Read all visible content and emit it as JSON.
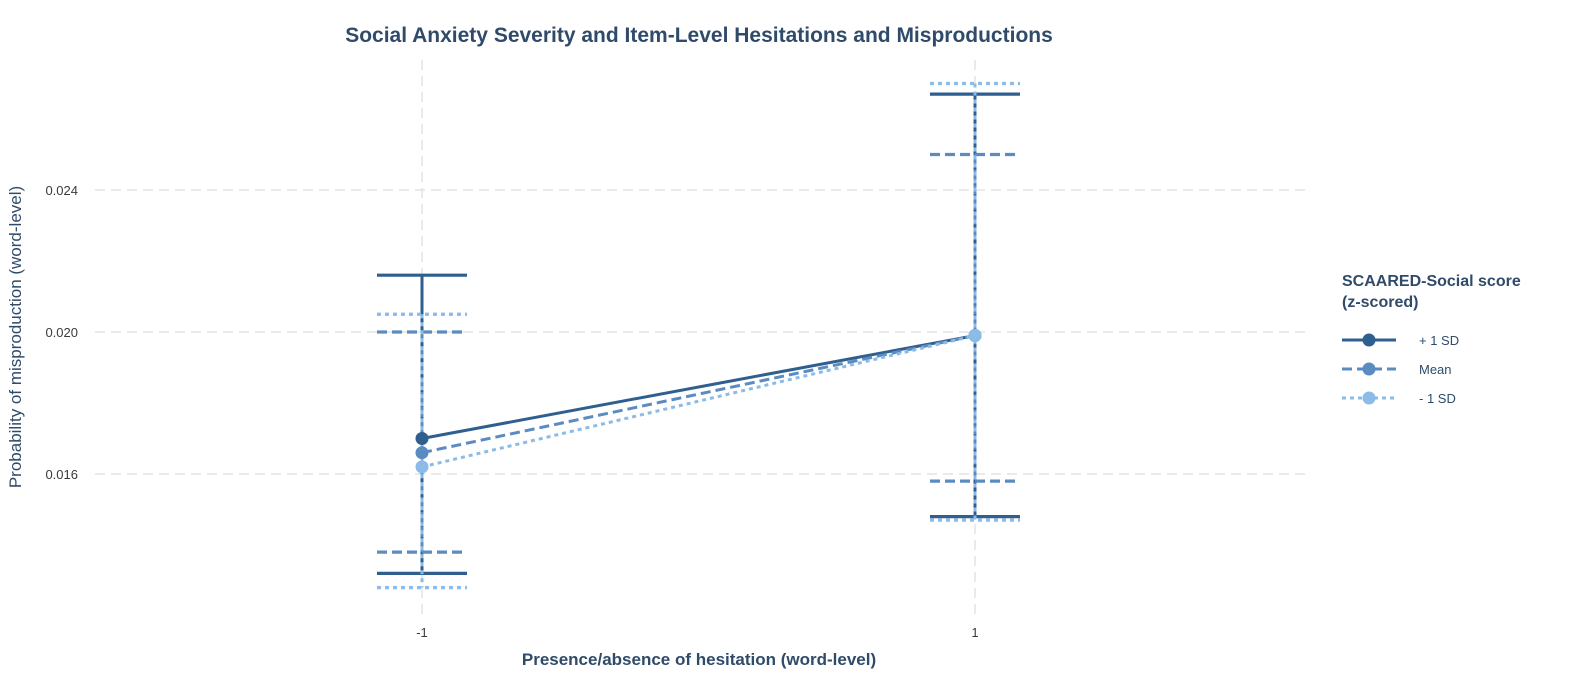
{
  "chart_data": {
    "type": "line",
    "title": "Social Anxiety Severity and Item-Level Hesitations and Misproductions",
    "xlabel": "Presence/absence of hesitation (word-level)",
    "ylabel": "Probability of misproduction (word-level)",
    "categories": [
      "-1",
      "1"
    ],
    "yticks": [
      "0.016",
      "0.020",
      "0.024"
    ],
    "ytick_values": [
      0.016,
      0.02,
      0.024
    ],
    "ylim": [
      0.0125,
      0.0277
    ],
    "grid": true,
    "legend": {
      "title_line1": "SCAARED-Social score",
      "title_line2": "(z-scored)",
      "position": "right"
    },
    "series": [
      {
        "name": "+ 1 SD",
        "values": [
          0.017,
          0.0199
        ],
        "lower": [
          0.0132,
          0.0148
        ],
        "upper": [
          0.0216,
          0.0267
        ],
        "color": "#2e5f8f",
        "dash": "solid"
      },
      {
        "name": "Mean",
        "values": [
          0.0166,
          0.0199
        ],
        "lower": [
          0.0138,
          0.0158
        ],
        "upper": [
          0.02,
          0.025
        ],
        "color": "#5b8bc0",
        "dash": "dashed"
      },
      {
        "name": "- 1 SD",
        "values": [
          0.0162,
          0.0199
        ],
        "lower": [
          0.0128,
          0.0147
        ],
        "upper": [
          0.0205,
          0.027
        ],
        "color": "#8bbbe6",
        "dash": "dotted"
      }
    ]
  }
}
